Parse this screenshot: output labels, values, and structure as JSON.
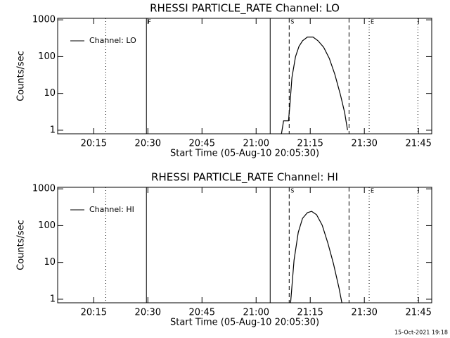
{
  "chart_data": [
    {
      "type": "line",
      "title": "RHESSI PARTICLE_RATE Channel: LO",
      "xlabel": "Start Time (05-Aug-10 20:05:30)",
      "ylabel": "Counts/sec",
      "log_y": true,
      "legend": "upper-left",
      "xlim": [
        "20:05:00",
        "21:48:40"
      ],
      "xticks": [
        "20:15",
        "20:30",
        "20:45",
        "21:00",
        "21:15",
        "21:30",
        "21:45"
      ],
      "ylim": [
        0.8,
        1100
      ],
      "yticks": [
        1,
        10,
        100,
        1000
      ],
      "x": [
        "21:07:01",
        "21:07:36",
        "21:08:58",
        "21:09:21",
        "21:09:56",
        "21:10:55",
        "21:11:53",
        "21:12:52",
        "21:14:13",
        "21:15:47",
        "21:17:09",
        "21:18:43",
        "21:20:16",
        "21:21:49",
        "21:23:23",
        "21:24:33",
        "21:25:20"
      ],
      "series": [
        {
          "name": "Channel: LO",
          "color": "#000000",
          "values": [
            0.8,
            1.8,
            1.8,
            4.6,
            27,
            100,
            190,
            270,
            340,
            340,
            270,
            180,
            90,
            33,
            9,
            3,
            1
          ]
        }
      ],
      "markers": [
        {
          "x": "20:18:20",
          "style": "dotted"
        },
        {
          "x": "20:29:36",
          "style": "solid",
          "label": "F"
        },
        {
          "x": "21:03:54",
          "style": "solid"
        },
        {
          "x": "21:09:10",
          "style": "dashed",
          "label": "S"
        },
        {
          "x": "21:25:45",
          "style": "dashed"
        },
        {
          "x": "21:31:20",
          "style": "dotted",
          "label": "E"
        },
        {
          "x": "21:44:50",
          "style": "dotted"
        }
      ]
    },
    {
      "type": "line",
      "title": "RHESSI PARTICLE_RATE Channel: HI",
      "xlabel": "Start Time (05-Aug-10 20:05:30)",
      "ylabel": "Counts/sec",
      "log_y": true,
      "legend": "upper-left",
      "xlim": [
        "20:05:00",
        "21:48:40"
      ],
      "xticks": [
        "20:15",
        "20:30",
        "20:45",
        "21:00",
        "21:15",
        "21:30",
        "21:45"
      ],
      "ylim": [
        0.8,
        1100
      ],
      "yticks": [
        1,
        10,
        100,
        1000
      ],
      "x": [
        "21:09:33",
        "21:10:31",
        "21:11:41",
        "21:12:52",
        "21:14:13",
        "21:15:23",
        "21:16:45",
        "21:18:19",
        "21:19:52",
        "21:21:26",
        "21:22:59",
        "21:23:46"
      ],
      "series": [
        {
          "name": "Channel: HI",
          "color": "#000000",
          "values": [
            0.8,
            11.5,
            66,
            158,
            225,
            245,
            198,
            103,
            34,
            9.3,
            2,
            0.8
          ]
        }
      ],
      "markers": [
        {
          "x": "20:18:20",
          "style": "dotted"
        },
        {
          "x": "20:29:36",
          "style": "solid"
        },
        {
          "x": "21:03:54",
          "style": "solid"
        },
        {
          "x": "21:09:10",
          "style": "dashed",
          "label": "S"
        },
        {
          "x": "21:25:45",
          "style": "dashed"
        },
        {
          "x": "21:31:20",
          "style": "dotted",
          "label": "E"
        },
        {
          "x": "21:44:50",
          "style": "dotted"
        }
      ]
    }
  ],
  "footer": "15-Oct-2021 19:18"
}
